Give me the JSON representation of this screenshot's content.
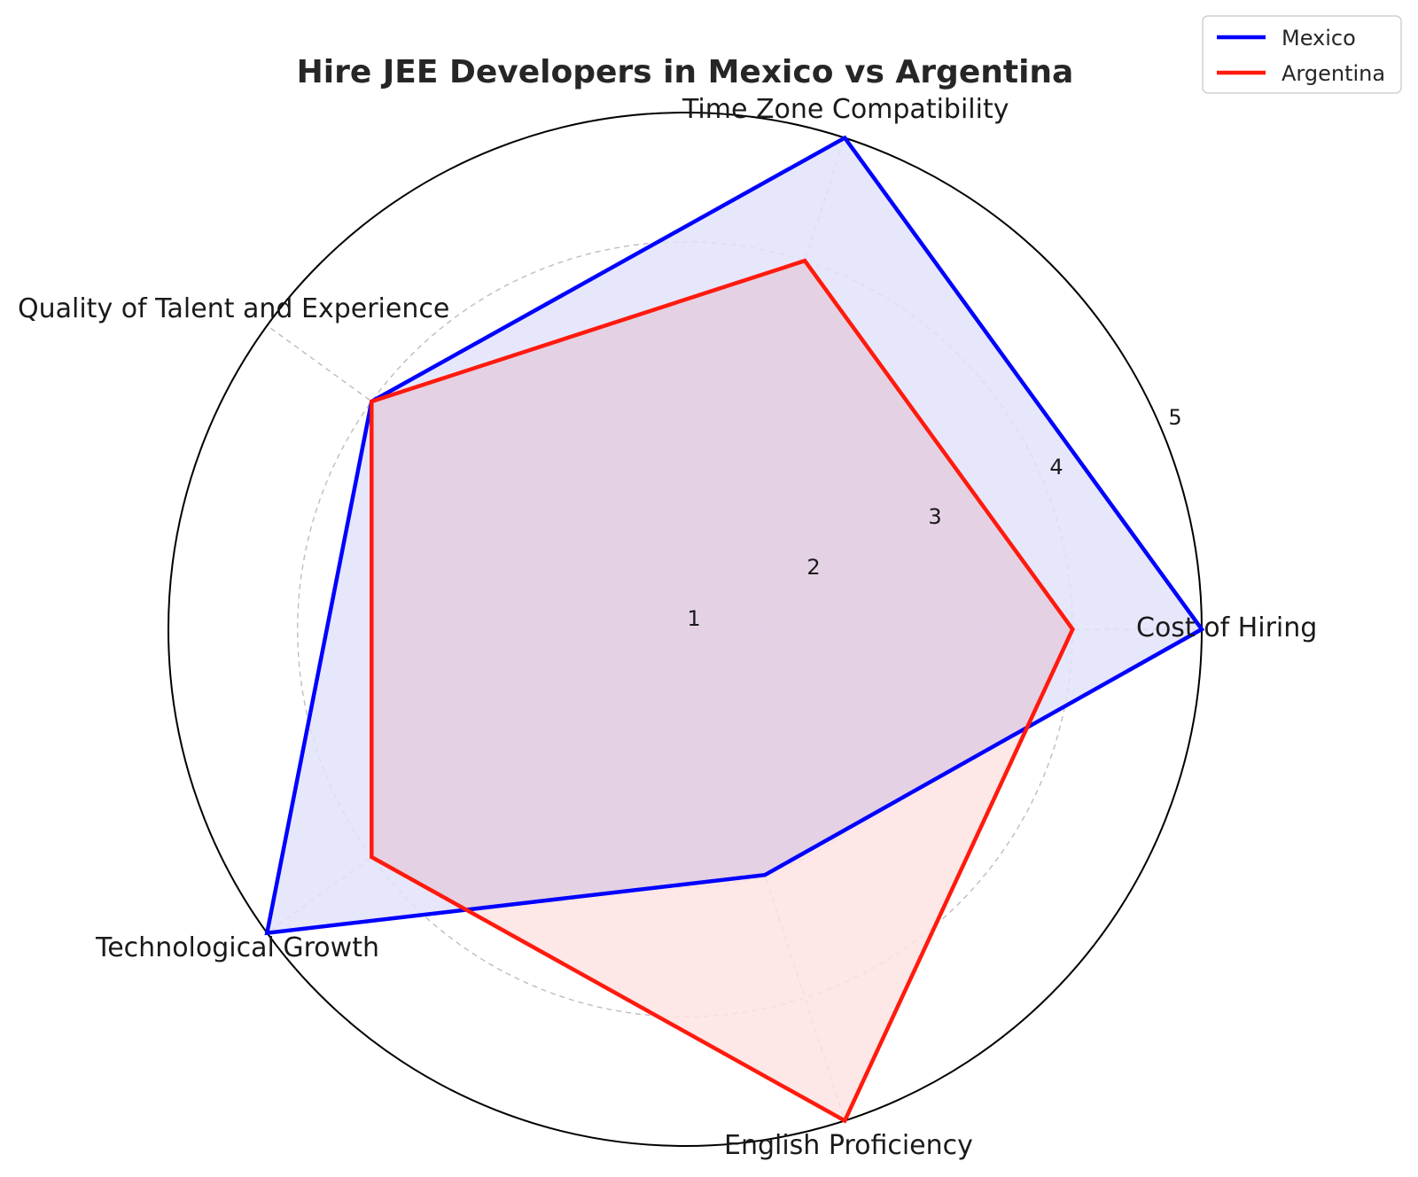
{
  "chart_data": {
    "type": "radar",
    "title": "Hire JEE Developers in Mexico vs Argentina",
    "categories": [
      "Cost of Hiring",
      "Time Zone Compatibility",
      "Quality of Talent and Experience",
      "Technological Growth",
      "English Proficiency"
    ],
    "series": [
      {
        "name": "Mexico",
        "values": [
          5,
          5,
          4,
          5,
          3
        ],
        "color": "#0000ff",
        "fill": "#e3e3fb"
      },
      {
        "name": "Argentina",
        "values": [
          4,
          4,
          4,
          4,
          5
        ],
        "color": "#ff1a0d",
        "fill": "#fde3e3"
      }
    ],
    "rlim": [
      1,
      5
    ],
    "r_ticks": [
      "1",
      "2",
      "3",
      "4",
      "5"
    ],
    "grid": true,
    "legend_position": "top-right"
  }
}
